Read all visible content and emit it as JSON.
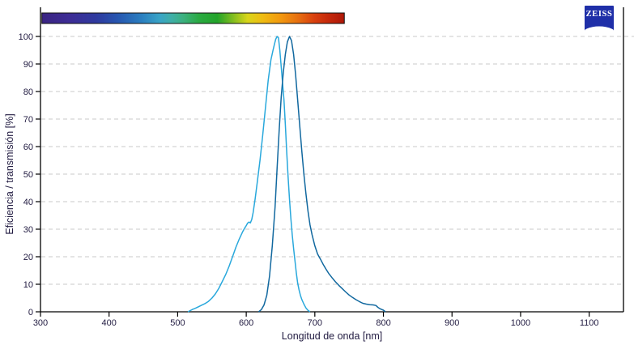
{
  "window": {
    "background": "#ffffff"
  },
  "branding": {
    "logo_text": "ZEISS",
    "logo_color": "#1F2FA8",
    "logo_text_color": "#ffffff"
  },
  "colors": {
    "grid": "#C8C8C8",
    "axis": "#000000",
    "tick_text": "#201A40",
    "light_curve": "#29A8DC",
    "dark_curve": "#11689F"
  },
  "chart_data": {
    "type": "line",
    "title": "",
    "xlabel": "Longitud de onda [nm]",
    "ylabel": "Eficiencia / transmisión [%]",
    "xlim": [
      300,
      1150
    ],
    "ylim": [
      0,
      100
    ],
    "x_ticks": [
      300,
      400,
      500,
      600,
      700,
      800,
      900,
      1000,
      1100
    ],
    "y_ticks": [
      0,
      10,
      20,
      30,
      40,
      50,
      60,
      70,
      80,
      90,
      100
    ],
    "grid": "horizontal-dashed",
    "legend_position": "none",
    "spectrum_bar": {
      "range_nm": [
        302,
        743
      ],
      "stops": [
        {
          "offset": "0%",
          "color": "#3A2482"
        },
        {
          "offset": "9%",
          "color": "#3D2C95"
        },
        {
          "offset": "18%",
          "color": "#2F3A9F"
        },
        {
          "offset": "25%",
          "color": "#2756B0"
        },
        {
          "offset": "33%",
          "color": "#2B7FC0"
        },
        {
          "offset": "39%",
          "color": "#39A4C6"
        },
        {
          "offset": "43%",
          "color": "#3FAFA6"
        },
        {
          "offset": "47%",
          "color": "#3BB07C"
        },
        {
          "offset": "52%",
          "color": "#2AAA42"
        },
        {
          "offset": "58%",
          "color": "#23A42A"
        },
        {
          "offset": "63%",
          "color": "#7DBC20"
        },
        {
          "offset": "68%",
          "color": "#D8D51A"
        },
        {
          "offset": "73%",
          "color": "#EFBC12"
        },
        {
          "offset": "79%",
          "color": "#F2980F"
        },
        {
          "offset": "85%",
          "color": "#E66D10"
        },
        {
          "offset": "90%",
          "color": "#D9400E"
        },
        {
          "offset": "95%",
          "color": "#C4280B"
        },
        {
          "offset": "100%",
          "color": "#AD1708"
        }
      ]
    },
    "series": [
      {
        "name": "light-blue-curve",
        "color": "#29A8DC",
        "peak_nm": 645,
        "points": [
          [
            515,
            0
          ],
          [
            518,
            0.4
          ],
          [
            522,
            0.9
          ],
          [
            526,
            1.3
          ],
          [
            530,
            1.8
          ],
          [
            535,
            2.4
          ],
          [
            540,
            3
          ],
          [
            545,
            3.8
          ],
          [
            550,
            5
          ],
          [
            555,
            6.5
          ],
          [
            560,
            8.5
          ],
          [
            565,
            11
          ],
          [
            570,
            13.5
          ],
          [
            575,
            16.5
          ],
          [
            580,
            20
          ],
          [
            585,
            23.5
          ],
          [
            590,
            26.5
          ],
          [
            595,
            29.2
          ],
          [
            598,
            30.5
          ],
          [
            600,
            31.3
          ],
          [
            602,
            32.2
          ],
          [
            604,
            32.6
          ],
          [
            606,
            32.3
          ],
          [
            608,
            33.5
          ],
          [
            610,
            36
          ],
          [
            613,
            41
          ],
          [
            616,
            47
          ],
          [
            620,
            55
          ],
          [
            624,
            64
          ],
          [
            628,
            74
          ],
          [
            632,
            84
          ],
          [
            636,
            91.5
          ],
          [
            639,
            95
          ],
          [
            641,
            97
          ],
          [
            643,
            99
          ],
          [
            645,
            100
          ],
          [
            647,
            99.5
          ],
          [
            649,
            95
          ],
          [
            651,
            89
          ],
          [
            653,
            83
          ],
          [
            655,
            77
          ],
          [
            657,
            68
          ],
          [
            659,
            58
          ],
          [
            661,
            49
          ],
          [
            663,
            41
          ],
          [
            665,
            34
          ],
          [
            667,
            28
          ],
          [
            669,
            23
          ],
          [
            671,
            18.5
          ],
          [
            673,
            14
          ],
          [
            675,
            10.5
          ],
          [
            677,
            8
          ],
          [
            679,
            6
          ],
          [
            681,
            4.5
          ],
          [
            684,
            2.8
          ],
          [
            687,
            1.4
          ],
          [
            690,
            0.5
          ],
          [
            693,
            0
          ]
        ]
      },
      {
        "name": "dark-blue-curve",
        "color": "#11689F",
        "peak_nm": 663,
        "points": [
          [
            618,
            0
          ],
          [
            622,
            0.8
          ],
          [
            626,
            2.5
          ],
          [
            630,
            6
          ],
          [
            634,
            13
          ],
          [
            638,
            24
          ],
          [
            642,
            38
          ],
          [
            645,
            52
          ],
          [
            648,
            66
          ],
          [
            651,
            78
          ],
          [
            654,
            87
          ],
          [
            657,
            93.5
          ],
          [
            660,
            98
          ],
          [
            663,
            100
          ],
          [
            666,
            98.5
          ],
          [
            669,
            93.5
          ],
          [
            672,
            86
          ],
          [
            675,
            77
          ],
          [
            678,
            67.5
          ],
          [
            681,
            58.5
          ],
          [
            684,
            50
          ],
          [
            687,
            43
          ],
          [
            690,
            36.5
          ],
          [
            693,
            31.5
          ],
          [
            696,
            28
          ],
          [
            700,
            24
          ],
          [
            704,
            21
          ],
          [
            708,
            19.2
          ],
          [
            712,
            17.3
          ],
          [
            716,
            15.6
          ],
          [
            720,
            14
          ],
          [
            725,
            12.4
          ],
          [
            730,
            10.9
          ],
          [
            735,
            9.6
          ],
          [
            740,
            8.4
          ],
          [
            745,
            7.2
          ],
          [
            750,
            6.1
          ],
          [
            755,
            5.2
          ],
          [
            760,
            4.4
          ],
          [
            765,
            3.7
          ],
          [
            770,
            3.1
          ],
          [
            775,
            2.8
          ],
          [
            780,
            2.6
          ],
          [
            785,
            2.5
          ],
          [
            789,
            2.3
          ],
          [
            792,
            1.6
          ],
          [
            796,
            1
          ],
          [
            800,
            0.6
          ],
          [
            803,
            0
          ]
        ]
      }
    ]
  }
}
